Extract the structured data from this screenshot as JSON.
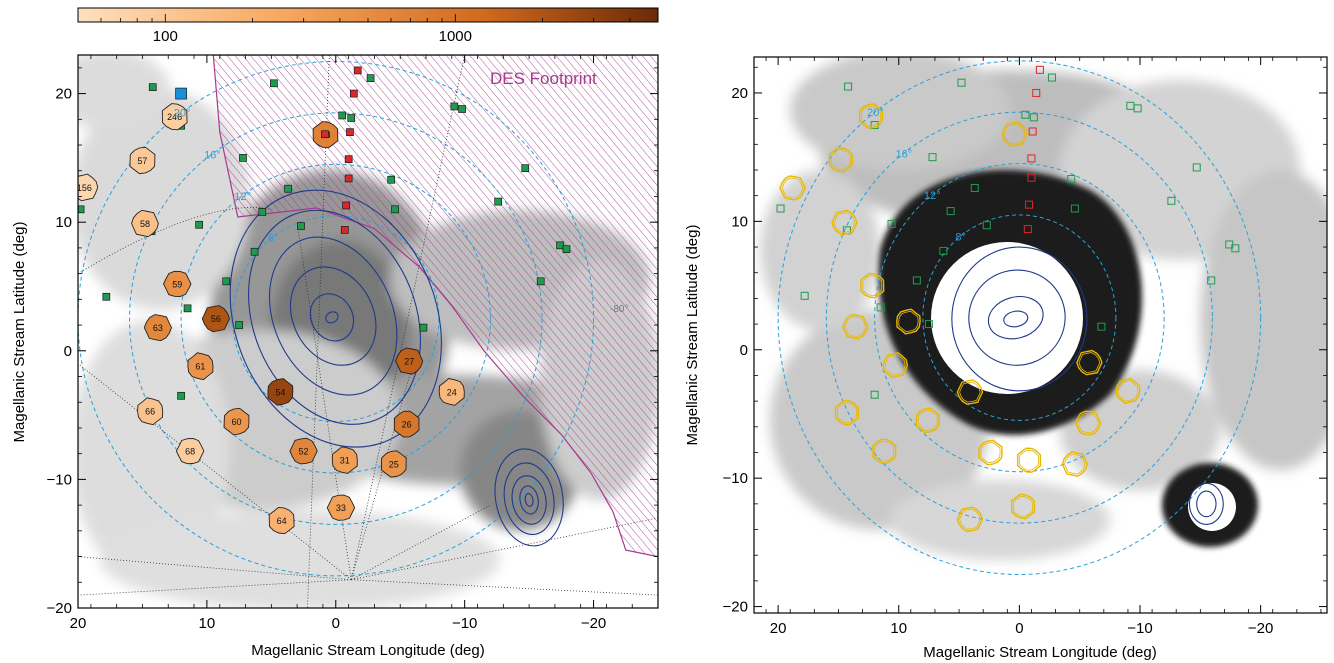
{
  "colors": {
    "ring": "#2aa0d8",
    "contour": "#1f3a8a",
    "green_marker": "#1e9b50",
    "red_marker": "#d9272e",
    "blue_marker": "#1a8fd6",
    "des_hatch": "#a63a8c",
    "field_outline_right": "#e8b800"
  },
  "chart_data": [
    {
      "type": "map",
      "panel": "left",
      "xlabel": "Magellanic Stream Longitude (deg)",
      "ylabel": "Magellanic Stream Latitude (deg)",
      "xlim": [
        20,
        -25
      ],
      "ylim": [
        -20,
        23
      ],
      "xticks": [
        20,
        10,
        0,
        -10,
        -20
      ],
      "yticks": [
        -20,
        -10,
        0,
        10,
        20
      ],
      "colorbar": {
        "ticks": [
          100,
          1000
        ],
        "range": [
          50,
          5000
        ],
        "scale": "log",
        "colors": [
          "#fde0bf",
          "#f7a860",
          "#d06a1e",
          "#6b2a07"
        ]
      },
      "footprint_label": "DES Footprint",
      "ring_labels": [
        {
          "text": "8°",
          "r": 8
        },
        {
          "text": "12°",
          "r": 12
        },
        {
          "text": "16°",
          "r": 16
        },
        {
          "text": "20°",
          "r": 20
        }
      ],
      "rings_r": [
        8,
        12,
        16,
        20
      ],
      "center": [
        0,
        2.5
      ],
      "angle_label": "-80°",
      "fields": [
        {
          "label": "246",
          "x": 12.5,
          "y": 18.2,
          "v": 80
        },
        {
          "label": "57",
          "x": 15,
          "y": 14.8,
          "v": 95
        },
        {
          "label": "156",
          "x": 19.5,
          "y": 12.7,
          "v": 65
        },
        {
          "label": "58",
          "x": 14.8,
          "y": 9.9,
          "v": 120
        },
        {
          "label": "18",
          "x": 0.8,
          "y": 16.8,
          "v": 600
        },
        {
          "label": "59",
          "x": 12.3,
          "y": 5.2,
          "v": 420
        },
        {
          "label": "56",
          "x": 9.3,
          "y": 2.5,
          "v": 1800
        },
        {
          "label": "63",
          "x": 13.8,
          "y": 1.8,
          "v": 520
        },
        {
          "label": "61",
          "x": 10.5,
          "y": -1.2,
          "v": 380
        },
        {
          "label": "54",
          "x": 4.3,
          "y": -3.2,
          "v": 2600
        },
        {
          "label": "27",
          "x": -5.7,
          "y": -0.8,
          "v": 1400
        },
        {
          "label": "24",
          "x": -9,
          "y": -3.2,
          "v": 150
        },
        {
          "label": "66",
          "x": 14.4,
          "y": -4.7,
          "v": 110
        },
        {
          "label": "60",
          "x": 7.7,
          "y": -5.5,
          "v": 360
        },
        {
          "label": "26",
          "x": -5.5,
          "y": -5.7,
          "v": 800
        },
        {
          "label": "68",
          "x": 11.3,
          "y": -7.8,
          "v": 85
        },
        {
          "label": "52",
          "x": 2.5,
          "y": -7.8,
          "v": 550
        },
        {
          "label": "31",
          "x": -0.7,
          "y": -8.5,
          "v": 300
        },
        {
          "label": "25",
          "x": -4.5,
          "y": -8.8,
          "v": 400
        },
        {
          "label": "33",
          "x": -0.4,
          "y": -12.2,
          "v": 280
        },
        {
          "label": "64",
          "x": 4.2,
          "y": -13.2,
          "v": 180
        }
      ],
      "green_points": [
        [
          14.2,
          20.5
        ],
        [
          4.8,
          20.8
        ],
        [
          -2.7,
          21.2
        ],
        [
          -9.2,
          19
        ],
        [
          -9.8,
          18.8
        ],
        [
          -0.5,
          18.3
        ],
        [
          -1.2,
          18.1
        ],
        [
          12,
          17.5
        ],
        [
          7.2,
          15
        ],
        [
          3.7,
          12.6
        ],
        [
          -4.3,
          13.3
        ],
        [
          -14.7,
          14.2
        ],
        [
          -12.6,
          11.6
        ],
        [
          5.7,
          10.8
        ],
        [
          -4.6,
          11
        ],
        [
          19.8,
          11
        ],
        [
          10.6,
          9.8
        ],
        [
          14.3,
          9.3
        ],
        [
          2.7,
          9.7
        ],
        [
          6.3,
          7.7
        ],
        [
          -17.4,
          8.2
        ],
        [
          -17.9,
          7.9
        ],
        [
          8.5,
          5.4
        ],
        [
          -15.9,
          5.4
        ],
        [
          17.8,
          4.2
        ],
        [
          11.5,
          3.3
        ],
        [
          7.5,
          2.0
        ],
        [
          -6.8,
          1.8
        ],
        [
          12,
          -3.5
        ]
      ],
      "red_points": [
        [
          -1.7,
          21.8
        ],
        [
          -1.4,
          20.0
        ],
        [
          -1.1,
          17.0
        ],
        [
          -1.0,
          14.9
        ],
        [
          -1.0,
          13.4
        ],
        [
          -0.8,
          11.3
        ],
        [
          -0.7,
          9.4
        ]
      ],
      "blue_points": [
        [
          12,
          20
        ]
      ],
      "lmc_contours": [
        {
          "cx": 0,
          "cy": 2.5,
          "rx": 7.8,
          "ry": 10.3,
          "rot": -22
        },
        {
          "cx": 0.1,
          "cy": 2.6,
          "rx": 6.3,
          "ry": 8.6,
          "rot": -22
        },
        {
          "cx": 0.2,
          "cy": 2.7,
          "rx": 4.6,
          "ry": 6.4,
          "rot": -24
        },
        {
          "cx": 0.2,
          "cy": 2.7,
          "rx": 3.1,
          "ry": 4.0,
          "rot": -28
        },
        {
          "cx": 0.3,
          "cy": 2.6,
          "rx": 1.6,
          "ry": 1.9,
          "rot": -30
        },
        {
          "cx": 0.3,
          "cy": 2.6,
          "rx": 0.5,
          "ry": 0.4,
          "rot": -30
        }
      ],
      "smc_contours": [
        {
          "cx": -15,
          "cy": -11.4,
          "rx": 2.6,
          "ry": 3.8,
          "rot": -10
        },
        {
          "cx": -15,
          "cy": -11.5,
          "rx": 1.9,
          "ry": 2.8,
          "rot": -10
        },
        {
          "cx": -15,
          "cy": -11.6,
          "rx": 1.3,
          "ry": 1.9,
          "rot": -10
        },
        {
          "cx": -15,
          "cy": -11.6,
          "rx": 0.7,
          "ry": 1.1,
          "rot": -10
        },
        {
          "cx": -15,
          "cy": -11.6,
          "rx": 0.3,
          "ry": 0.5,
          "rot": -10
        }
      ]
    },
    {
      "type": "map",
      "panel": "right",
      "xlabel": "Magellanic Stream Longitude (deg)",
      "ylabel": "Magellanic Stream Latitude (deg)",
      "xlim": [
        22,
        -25.5
      ],
      "ylim": [
        -20.5,
        22.8
      ],
      "xticks": [
        20,
        10,
        0,
        -10,
        -20
      ],
      "yticks": [
        -20,
        -10,
        0,
        10,
        20
      ],
      "ring_labels": [
        {
          "text": "8°",
          "r": 8
        },
        {
          "text": "12°",
          "r": 12
        },
        {
          "text": "16°",
          "r": 16
        },
        {
          "text": "20°",
          "r": 20
        }
      ],
      "rings_r": [
        8,
        12,
        16,
        20
      ],
      "center": [
        0,
        2.5
      ],
      "outlined_fields": [
        [
          12.3,
          18.2
        ],
        [
          14.8,
          14.8
        ],
        [
          18.8,
          12.6
        ],
        [
          14.5,
          9.9
        ],
        [
          0.4,
          16.8
        ],
        [
          12.2,
          5.0
        ],
        [
          9.2,
          2.2
        ],
        [
          13.6,
          1.8
        ],
        [
          10.3,
          -1.2
        ],
        [
          4.1,
          -3.3
        ],
        [
          -5.8,
          -1.0
        ],
        [
          -9,
          -3.2
        ],
        [
          14.3,
          -4.9
        ],
        [
          7.6,
          -5.5
        ],
        [
          -5.7,
          -5.7
        ],
        [
          11.2,
          -7.9
        ],
        [
          2.4,
          -8.0
        ],
        [
          -0.8,
          -8.6
        ],
        [
          -4.6,
          -8.9
        ],
        [
          -0.3,
          -12.2
        ],
        [
          4.1,
          -13.2
        ]
      ],
      "lmc_contours": [
        {
          "cx": 0,
          "cy": 2.4,
          "rx": 5.6,
          "ry": 5.6,
          "rot": 0
        },
        {
          "cx": 0.2,
          "cy": 2.5,
          "rx": 4.0,
          "ry": 3.7,
          "rot": -20
        },
        {
          "cx": 0.3,
          "cy": 2.5,
          "rx": 2.3,
          "ry": 1.6,
          "rot": -15
        },
        {
          "cx": 0.3,
          "cy": 2.4,
          "rx": 1.0,
          "ry": 0.6,
          "rot": -10
        }
      ],
      "smc_contours": [
        {
          "cx": -15.5,
          "cy": -12,
          "rx": 1.4,
          "ry": 1.6,
          "rot": 0
        },
        {
          "cx": -15.5,
          "cy": -12,
          "rx": 0.8,
          "ry": 1.0,
          "rot": 0
        }
      ]
    }
  ]
}
